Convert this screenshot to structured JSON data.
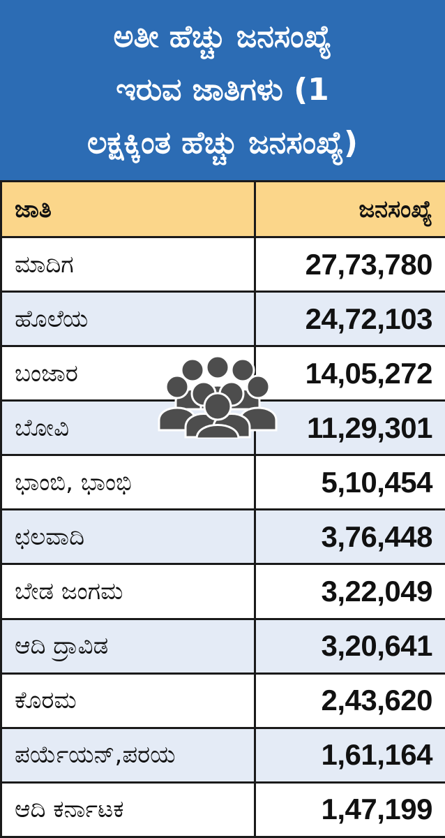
{
  "title": {
    "lines": [
      "ಅತೀ ಹೆಚ್ಚು ಜನಸಂಖ್ಯೆ",
      "ಇರುವ ಜಾತಿಗಳು (1",
      "ಲಕ್ಷಕ್ಕಿಂತ ಹೆಚ್ಚು ಜನಸಂಖ್ಯೆ)"
    ]
  },
  "table": {
    "headers": {
      "caste": "ಜಾತಿ",
      "population": "ಜನಸಂಖ್ಯೆ"
    },
    "rows": [
      {
        "caste": "ಮಾದಿಗ",
        "population": "27,73,780"
      },
      {
        "caste": "ಹೊಲೆಯ",
        "population": "24,72,103"
      },
      {
        "caste": "ಬಂಜಾರ",
        "population": "14,05,272"
      },
      {
        "caste": "ಬೋವಿ",
        "population": "11,29,301"
      },
      {
        "caste": "ಭಾಂಬಿ, ಭಾಂಭಿ",
        "population": "5,10,454"
      },
      {
        "caste": "ಛಲವಾದಿ",
        "population": "3,76,448"
      },
      {
        "caste": "ಬೇಡ ಜಂಗಮ",
        "population": "3,22,049"
      },
      {
        "caste": "ಆದಿ ದ್ರಾವಿಡ",
        "population": "3,20,641"
      },
      {
        "caste": "ಕೊರಮ",
        "population": "2,43,620"
      },
      {
        "caste": "ಪರ್ಯೆಯನ್,ಪರಯ",
        "population": "1,61,164"
      },
      {
        "caste": "ಆದಿ ಕರ್ನಾಟಕ",
        "population": "1,47,199"
      }
    ]
  },
  "colors": {
    "title_background": "#2c6cb4",
    "header_background": "#fbd68a",
    "row_alt_background": "#e4ebf6",
    "icon_color": "#4d4d4d"
  },
  "icons": {
    "people_graphic": "group-of-people-icon"
  }
}
